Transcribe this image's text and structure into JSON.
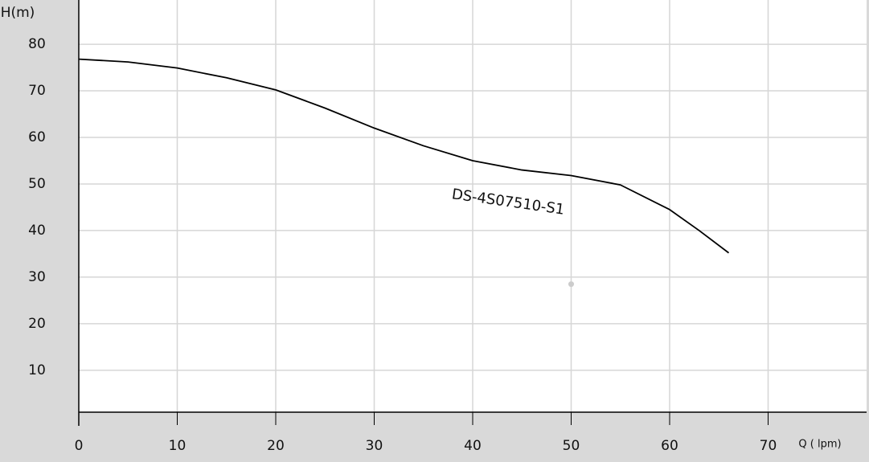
{
  "chart_data": {
    "type": "line",
    "y_label": "H(m)",
    "x_label": "Q ( lpm)",
    "x": [
      0,
      5,
      10,
      15,
      20,
      25,
      30,
      35,
      40,
      45,
      50,
      55,
      60,
      63,
      66
    ],
    "series": [
      {
        "name": "DS-4S07510-S1",
        "color": "#000000",
        "values": [
          76.8,
          76.2,
          74.9,
          72.8,
          70.2,
          66.3,
          62.0,
          58.2,
          55.0,
          53.0,
          51.8,
          49.8,
          44.5,
          40.0,
          35.2
        ]
      }
    ],
    "duty_point": {
      "x": 50,
      "y": 28.5,
      "color": "#cccccc"
    },
    "xlim": [
      0,
      80
    ],
    "ylim": [
      1,
      89.5
    ],
    "xticks": [
      0,
      10,
      20,
      30,
      40,
      50,
      60,
      70
    ],
    "yticks": [
      10,
      20,
      30,
      40,
      50,
      60,
      70,
      80
    ],
    "grid": true
  }
}
